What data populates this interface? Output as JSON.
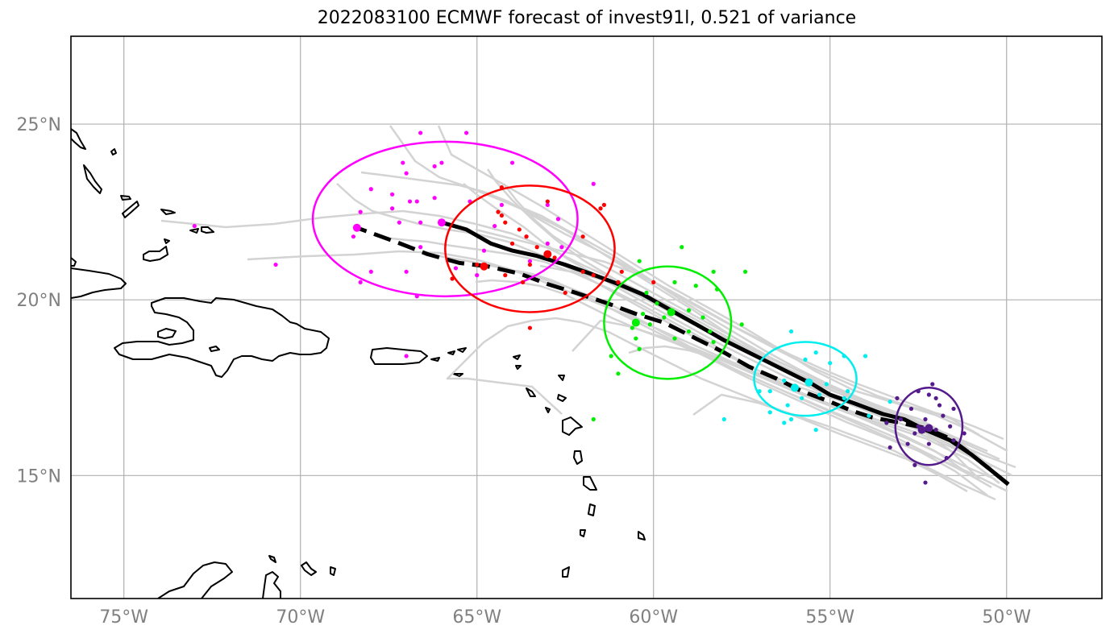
{
  "title": "2022083100 ECMWF forecast of invest91l, 0.521 of variance",
  "axes": {
    "lon_range": [
      -76.5,
      -47.3
    ],
    "lat_range": [
      11.5,
      27.5
    ],
    "x_ticks": [
      {
        "value": -75,
        "label": "75°W"
      },
      {
        "value": -70,
        "label": "70°W"
      },
      {
        "value": -65,
        "label": "65°W"
      },
      {
        "value": -60,
        "label": "60°W"
      },
      {
        "value": -55,
        "label": "55°W"
      },
      {
        "value": -50,
        "label": "50°W"
      }
    ],
    "y_ticks": [
      {
        "value": 25,
        "label": "25°N"
      },
      {
        "value": 20,
        "label": "20°N"
      },
      {
        "value": 15,
        "label": "15°N"
      }
    ],
    "grid": true
  },
  "colors": {
    "ensemble": "#d3d3d3",
    "mean_track": "#000000",
    "groups": [
      "#ff00ff",
      "#ff0000",
      "#00ee00",
      "#00eeee",
      "#551a8b"
    ]
  },
  "chart_data": {
    "type": "map-tracks",
    "mean_track_solid": [
      [
        -49.95,
        14.75
      ],
      [
        -50.5,
        15.2
      ],
      [
        -51,
        15.6
      ],
      [
        -51.6,
        16.0
      ],
      [
        -52.3,
        16.3
      ],
      [
        -52.9,
        16.6
      ],
      [
        -53.5,
        16.75
      ],
      [
        -54.3,
        17.05
      ],
      [
        -55.0,
        17.3
      ],
      [
        -55.5,
        17.6
      ],
      [
        -56.0,
        17.85
      ],
      [
        -56.7,
        18.2
      ],
      [
        -57.3,
        18.5
      ],
      [
        -58.0,
        18.85
      ],
      [
        -58.7,
        19.25
      ],
      [
        -59.5,
        19.7
      ],
      [
        -60.3,
        20.15
      ],
      [
        -61.0,
        20.45
      ],
      [
        -61.8,
        20.75
      ],
      [
        -62.5,
        21.0
      ],
      [
        -63.3,
        21.25
      ],
      [
        -64.0,
        21.4
      ],
      [
        -64.6,
        21.6
      ],
      [
        -65.3,
        22.0
      ],
      [
        -66.0,
        22.2
      ]
    ],
    "mean_track_dashed": [
      [
        -49.95,
        14.75
      ],
      [
        -50.5,
        15.2
      ],
      [
        -51,
        15.6
      ],
      [
        -51.6,
        16.05
      ],
      [
        -52.3,
        16.35
      ],
      [
        -53.0,
        16.5
      ],
      [
        -53.8,
        16.65
      ],
      [
        -54.4,
        16.85
      ],
      [
        -55.0,
        17.1
      ],
      [
        -55.8,
        17.4
      ],
      [
        -56.5,
        17.75
      ],
      [
        -57.3,
        18.1
      ],
      [
        -58.0,
        18.5
      ],
      [
        -58.8,
        18.9
      ],
      [
        -59.7,
        19.35
      ],
      [
        -60.5,
        19.6
      ],
      [
        -61.3,
        19.9
      ],
      [
        -62.2,
        20.2
      ],
      [
        -63.0,
        20.45
      ],
      [
        -63.8,
        20.75
      ],
      [
        -64.7,
        20.95
      ],
      [
        -65.5,
        21.05
      ],
      [
        -66.4,
        21.3
      ],
      [
        -67.3,
        21.65
      ],
      [
        -68.4,
        22.05
      ]
    ],
    "groups": [
      {
        "center_mean": [
          -66.0,
          22.2
        ],
        "center_ens": [
          -68.4,
          22.05
        ],
        "ellipse": {
          "cx": -65.9,
          "cy": 22.3,
          "rx": 3.75,
          "ry": 2.2
        },
        "color": "#ff00ff",
        "points": [
          [
            -66.6,
            24.75
          ],
          [
            -65.3,
            24.75
          ],
          [
            -67.1,
            23.9
          ],
          [
            -66.2,
            23.8
          ],
          [
            -66.0,
            23.9
          ],
          [
            -67.0,
            23.6
          ],
          [
            -64.0,
            23.9
          ],
          [
            -68.0,
            23.15
          ],
          [
            -67.4,
            23.0
          ],
          [
            -66.9,
            22.8
          ],
          [
            -66.7,
            22.8
          ],
          [
            -66.2,
            22.9
          ],
          [
            -65.2,
            22.8
          ],
          [
            -64.3,
            22.7
          ],
          [
            -63.0,
            22.7
          ],
          [
            -61.7,
            23.3
          ],
          [
            -68.3,
            22.5
          ],
          [
            -67.4,
            22.6
          ],
          [
            -67.2,
            22.2
          ],
          [
            -66.6,
            22.2
          ],
          [
            -64.5,
            22.1
          ],
          [
            -63.6,
            21.8
          ],
          [
            -63.0,
            21.6
          ],
          [
            -62.7,
            22.3
          ],
          [
            -68.5,
            21.8
          ],
          [
            -66.6,
            21.5
          ],
          [
            -64.8,
            21.4
          ],
          [
            -63.5,
            21.1
          ],
          [
            -62.6,
            21.5
          ],
          [
            -73.0,
            22.1
          ],
          [
            -70.7,
            21.0
          ],
          [
            -68.0,
            20.8
          ],
          [
            -67.0,
            20.8
          ],
          [
            -68.3,
            20.5
          ],
          [
            -65.6,
            20.9
          ],
          [
            -65.0,
            20.7
          ],
          [
            -67.0,
            18.4
          ],
          [
            -66.7,
            20.1
          ]
        ]
      },
      {
        "center_mean": [
          -63.0,
          21.3
        ],
        "center_ens": [
          -64.8,
          20.95
        ],
        "ellipse": {
          "cx": -63.5,
          "cy": 21.45,
          "rx": 2.4,
          "ry": 1.8
        },
        "color": "#ff0000",
        "points": [
          [
            -64.3,
            23.2
          ],
          [
            -61.4,
            22.7
          ],
          [
            -61.5,
            22.6
          ],
          [
            -64.4,
            22.5
          ],
          [
            -64.3,
            22.4
          ],
          [
            -63.0,
            22.8
          ],
          [
            -64.2,
            22.2
          ],
          [
            -63.8,
            22.0
          ],
          [
            -63.6,
            21.8
          ],
          [
            -62.0,
            21.8
          ],
          [
            -64.0,
            21.6
          ],
          [
            -63.3,
            21.5
          ],
          [
            -62.8,
            21.2
          ],
          [
            -63.5,
            21.0
          ],
          [
            -62.0,
            20.8
          ],
          [
            -61.7,
            20.7
          ],
          [
            -60.9,
            20.8
          ],
          [
            -63.7,
            20.5
          ],
          [
            -62.5,
            20.2
          ],
          [
            -65.0,
            21.0
          ],
          [
            -65.7,
            20.6
          ],
          [
            -63.5,
            19.2
          ],
          [
            -64.2,
            20.7
          ],
          [
            -61.0,
            20.5
          ],
          [
            -60.0,
            20.5
          ]
        ]
      },
      {
        "center_mean": [
          -59.5,
          19.65
        ],
        "center_ens": [
          -60.5,
          19.35
        ],
        "ellipse": {
          "cx": -59.6,
          "cy": 19.35,
          "rx": 1.8,
          "ry": 1.6
        },
        "color": "#00ee00",
        "points": [
          [
            -59.2,
            21.5
          ],
          [
            -60.4,
            21.1
          ],
          [
            -58.3,
            20.8
          ],
          [
            -57.4,
            20.8
          ],
          [
            -59.4,
            20.5
          ],
          [
            -58.8,
            20.4
          ],
          [
            -60.2,
            20.2
          ],
          [
            -58.2,
            20.3
          ],
          [
            -59.9,
            19.9
          ],
          [
            -60.3,
            19.6
          ],
          [
            -59.7,
            19.5
          ],
          [
            -59.0,
            19.7
          ],
          [
            -60.1,
            19.3
          ],
          [
            -58.6,
            19.5
          ],
          [
            -57.5,
            19.3
          ],
          [
            -59.0,
            19.1
          ],
          [
            -58.4,
            19.1
          ],
          [
            -60.6,
            19.2
          ],
          [
            -59.4,
            18.9
          ],
          [
            -60.5,
            18.9
          ],
          [
            -61.2,
            18.4
          ],
          [
            -61.0,
            17.9
          ],
          [
            -58.3,
            18.8
          ],
          [
            -61.7,
            16.6
          ],
          [
            -60.4,
            18.6
          ]
        ]
      },
      {
        "center_mean": [
          -55.6,
          17.65
        ],
        "center_ens": [
          -56.0,
          17.5
        ],
        "ellipse": {
          "cx": -55.7,
          "cy": 17.75,
          "rx": 1.45,
          "ry": 1.05
        },
        "color": "#00eeee",
        "points": [
          [
            -56.1,
            19.1
          ],
          [
            -55.4,
            18.5
          ],
          [
            -54.6,
            18.4
          ],
          [
            -55.7,
            18.3
          ],
          [
            -55.0,
            18.2
          ],
          [
            -54.0,
            18.4
          ],
          [
            -56.3,
            17.7
          ],
          [
            -55.1,
            17.6
          ],
          [
            -54.5,
            17.4
          ],
          [
            -56.7,
            17.4
          ],
          [
            -55.8,
            17.2
          ],
          [
            -55.3,
            17.3
          ],
          [
            -54.6,
            17.2
          ],
          [
            -56.2,
            17.0
          ],
          [
            -56.7,
            16.8
          ],
          [
            -56.1,
            16.6
          ],
          [
            -55.4,
            16.3
          ],
          [
            -53.9,
            16.7
          ],
          [
            -53.3,
            17.1
          ],
          [
            -57.0,
            17.4
          ],
          [
            -58.0,
            16.6
          ],
          [
            -56.3,
            16.5
          ]
        ]
      },
      {
        "center_mean": [
          -52.2,
          16.35
        ],
        "center_ens": [
          -52.4,
          16.3
        ],
        "ellipse": {
          "cx": -52.2,
          "cy": 16.4,
          "rx": 0.95,
          "ry": 1.1
        },
        "color": "#551a8b",
        "points": [
          [
            -52.1,
            17.6
          ],
          [
            -52.5,
            17.4
          ],
          [
            -52.2,
            17.3
          ],
          [
            -52.0,
            17.2
          ],
          [
            -53.1,
            17.2
          ],
          [
            -51.9,
            17.0
          ],
          [
            -52.7,
            16.9
          ],
          [
            -51.5,
            16.9
          ],
          [
            -51.8,
            16.7
          ],
          [
            -52.3,
            16.6
          ],
          [
            -53.0,
            16.6
          ],
          [
            -51.6,
            16.4
          ],
          [
            -52.0,
            16.3
          ],
          [
            -52.6,
            16.2
          ],
          [
            -51.2,
            16.2
          ],
          [
            -51.5,
            16.0
          ],
          [
            -52.8,
            15.9
          ],
          [
            -52.2,
            15.9
          ],
          [
            -53.3,
            15.8
          ],
          [
            -52.6,
            15.3
          ],
          [
            -52.3,
            14.8
          ],
          [
            -51.7,
            15.5
          ],
          [
            -52.5,
            16.4
          ],
          [
            -53.4,
            16.5
          ]
        ]
      }
    ]
  }
}
